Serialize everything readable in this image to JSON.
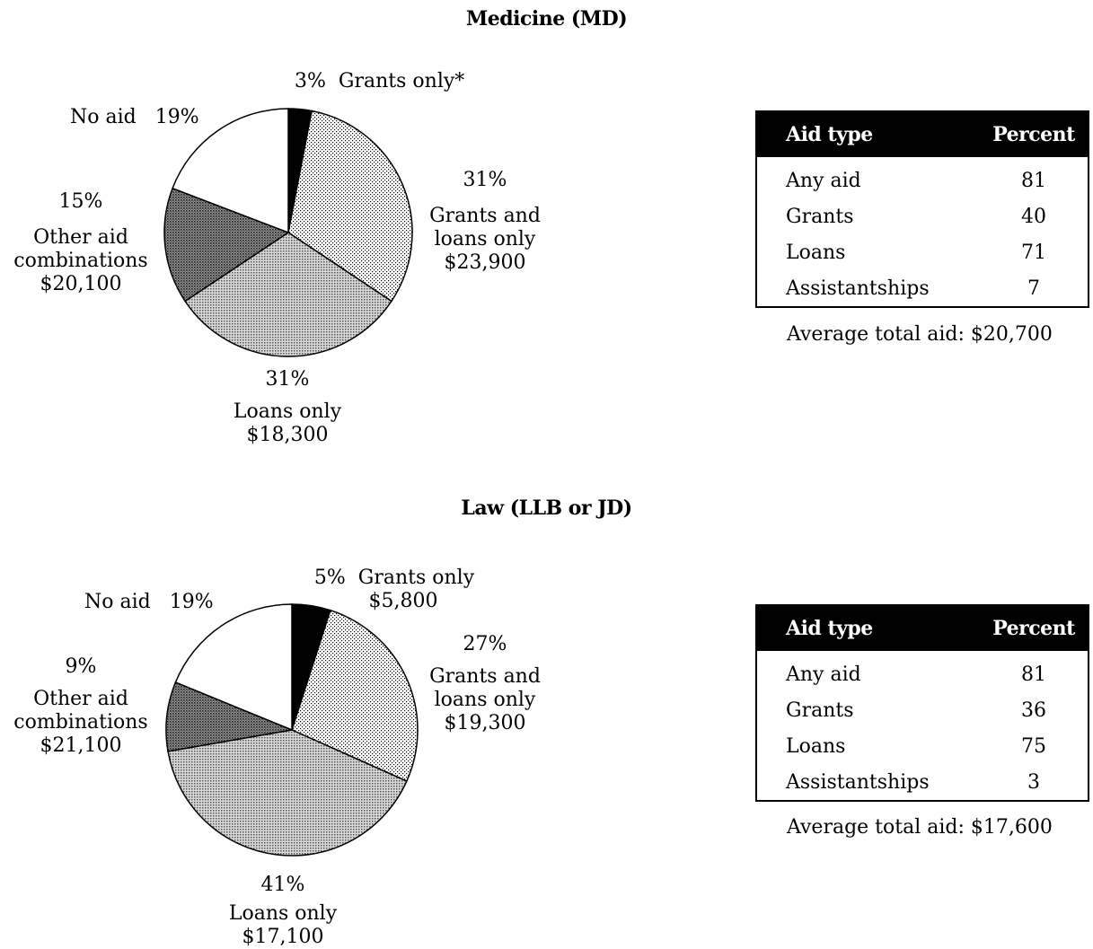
{
  "chart_data": [
    {
      "type": "pie",
      "title": "Medicine (MD)",
      "slices": [
        {
          "label": "Grants only*",
          "percent": 3,
          "amount": "",
          "pattern": "black"
        },
        {
          "label": "Grants and loans only",
          "percent": 31,
          "amount": "$23,900",
          "pattern": "fine-dots"
        },
        {
          "label": "Loans only",
          "percent": 31,
          "amount": "$18,300",
          "pattern": "medium-dots"
        },
        {
          "label": "Other aid combinations",
          "percent": 15,
          "amount": "$20,100",
          "pattern": "dark-dots"
        },
        {
          "label": "No aid",
          "percent": 19,
          "amount": "",
          "pattern": "white"
        }
      ],
      "table": {
        "headers": [
          "Aid type",
          "Percent"
        ],
        "rows": [
          [
            "Any aid",
            "81"
          ],
          [
            "Grants",
            "40"
          ],
          [
            "Loans",
            "71"
          ],
          [
            "Assistantships",
            "7"
          ]
        ]
      },
      "average_total_aid": "Average total aid: $20,700"
    },
    {
      "type": "pie",
      "title": "Law (LLB or JD)",
      "slices": [
        {
          "label": "Grants only",
          "percent": 5,
          "amount": "$5,800",
          "pattern": "black"
        },
        {
          "label": "Grants and loans only",
          "percent": 27,
          "amount": "$19,300",
          "pattern": "fine-dots"
        },
        {
          "label": "Loans only",
          "percent": 41,
          "amount": "$17,100",
          "pattern": "medium-dots"
        },
        {
          "label": "Other aid combinations",
          "percent": 9,
          "amount": "$21,100",
          "pattern": "dark-dots"
        },
        {
          "label": "No aid",
          "percent": 19,
          "amount": "",
          "pattern": "white"
        }
      ],
      "table": {
        "headers": [
          "Aid type",
          "Percent"
        ],
        "rows": [
          [
            "Any aid",
            "81"
          ],
          [
            "Grants",
            "36"
          ],
          [
            "Loans",
            "75"
          ],
          [
            "Assistantships",
            "3"
          ]
        ]
      },
      "average_total_aid": "Average total aid: $17,600"
    }
  ]
}
